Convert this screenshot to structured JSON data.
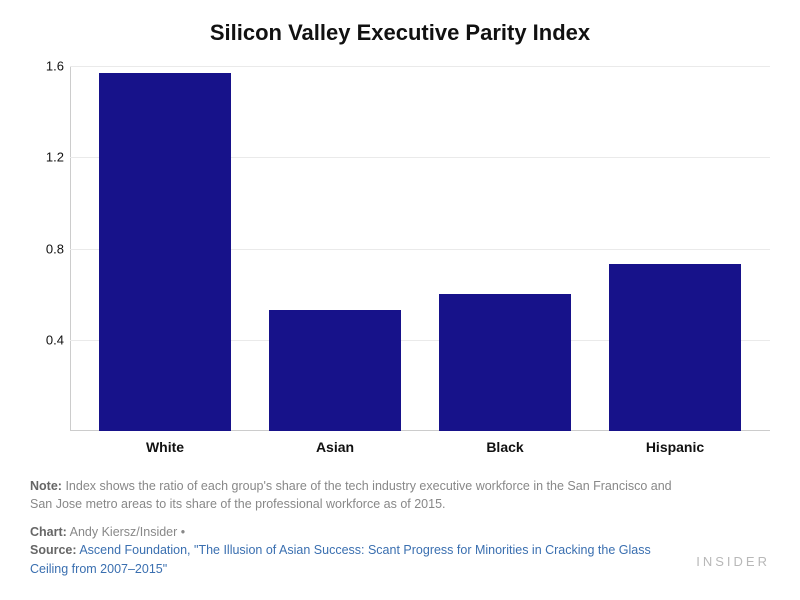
{
  "chart": {
    "type": "bar",
    "title": "Silicon Valley Executive Parity Index",
    "title_fontsize": 22,
    "categories": [
      "White",
      "Asian",
      "Black",
      "Hispanic"
    ],
    "values": [
      1.57,
      0.53,
      0.6,
      0.73
    ],
    "bar_colors": [
      "#17128a",
      "#17128a",
      "#17128a",
      "#17128a"
    ],
    "ylim": [
      0,
      1.6
    ],
    "ytick_step": 0.4,
    "yticks": [
      0.4,
      0.8,
      1.2,
      1.6
    ],
    "background_color": "#ffffff",
    "grid_color": "#eaeaea",
    "axis_color": "#cccccc",
    "bar_width": 0.78,
    "label_fontsize": 14,
    "tick_fontsize": 13
  },
  "footer": {
    "note_label": "Note:",
    "note_text": "Index shows the ratio of each group's share of the tech industry executive workforce in the San Francisco and San Jose metro areas to its share of the professional workforce as of 2015.",
    "chart_label": "Chart:",
    "chart_credit": "Andy Kiersz/Insider",
    "source_label": "Source:",
    "source_text": "Ascend Foundation, \"The Illusion of Asian Success: Scant Progress for Minorities in Cracking the Glass Ceiling from 2007–2015\"",
    "brand": "INSIDER"
  }
}
